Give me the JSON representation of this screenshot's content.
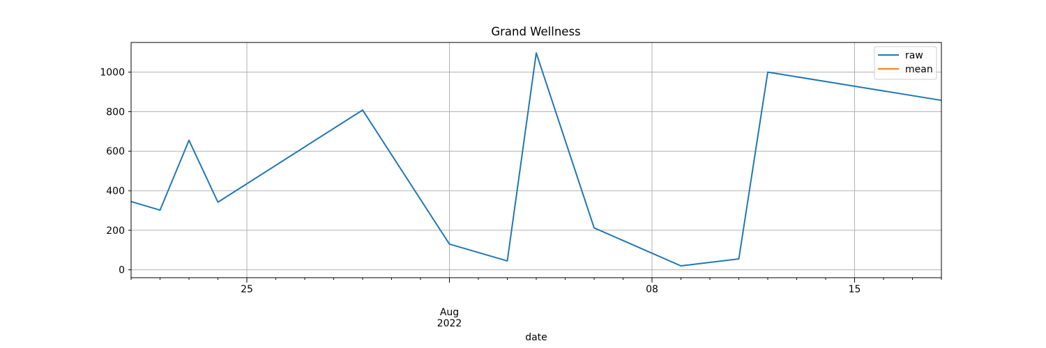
{
  "chart_data": {
    "type": "line",
    "title": "Grand Wellness",
    "xlabel": "date",
    "ylabel": "",
    "x_axis": {
      "type": "date",
      "range": [
        "2022-07-21",
        "2022-08-18"
      ],
      "major_ticks": [
        {
          "date": "2022-07-25",
          "label": "25",
          "sublabel": ""
        },
        {
          "date": "2022-08-01",
          "label": "Aug",
          "sublabel": "2022"
        },
        {
          "date": "2022-08-08",
          "label": "08",
          "sublabel": ""
        },
        {
          "date": "2022-08-15",
          "label": "15",
          "sublabel": ""
        }
      ],
      "minor_tick_interval": "1 day"
    },
    "y_axis": {
      "range": [
        -40,
        1150
      ],
      "ticks": [
        0,
        200,
        400,
        600,
        800,
        1000
      ],
      "tick_labels": [
        "0",
        "200",
        "400",
        "600",
        "800",
        "1000"
      ]
    },
    "grid": true,
    "legend": {
      "placement": "top-right",
      "entries": [
        "raw",
        "mean"
      ]
    },
    "series": [
      {
        "name": "raw",
        "color": "#1f77b4",
        "points": [
          {
            "x": "2022-07-21",
            "y": 345
          },
          {
            "x": "2022-07-22",
            "y": 302
          },
          {
            "x": "2022-07-23",
            "y": 655
          },
          {
            "x": "2022-07-24",
            "y": 342
          },
          {
            "x": "2022-07-29",
            "y": 808
          },
          {
            "x": "2022-08-01",
            "y": 130
          },
          {
            "x": "2022-08-03",
            "y": 45
          },
          {
            "x": "2022-08-04",
            "y": 1097
          },
          {
            "x": "2022-08-06",
            "y": 212
          },
          {
            "x": "2022-08-09",
            "y": 20
          },
          {
            "x": "2022-08-11",
            "y": 55
          },
          {
            "x": "2022-08-12",
            "y": 1000
          },
          {
            "x": "2022-08-18",
            "y": 857
          }
        ]
      },
      {
        "name": "mean",
        "color": "#ff7f0e",
        "points": []
      }
    ]
  }
}
